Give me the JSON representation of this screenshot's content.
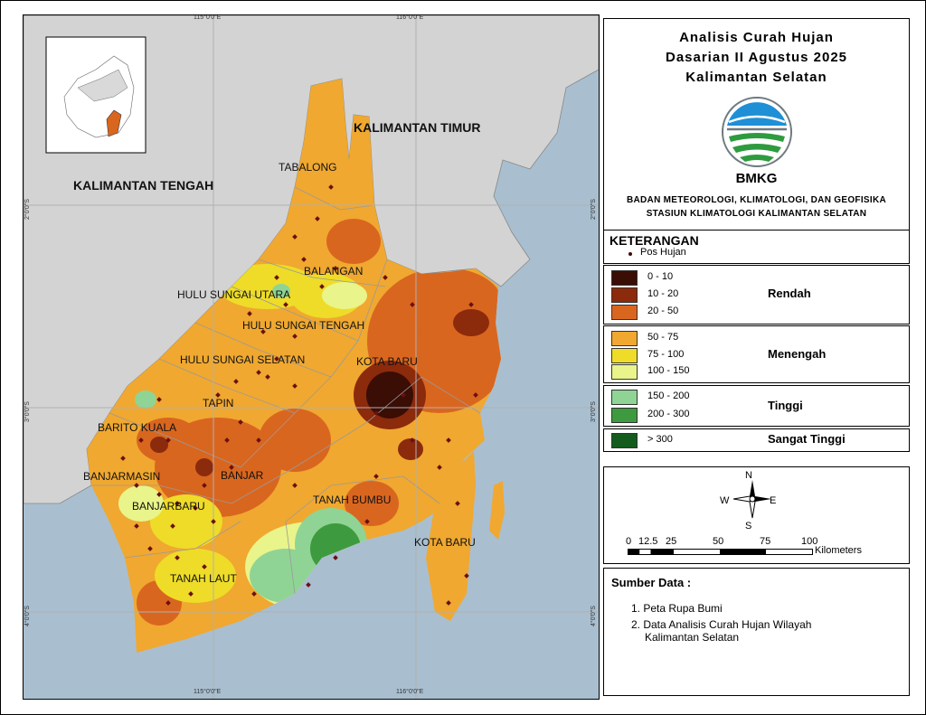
{
  "title": {
    "line1": "Analisis Curah Hujan",
    "line2": "Dasarian II Agustus 2025",
    "line3": "Kalimantan Selatan"
  },
  "logo": {
    "text": "BMKG",
    "colors": {
      "blue": "#1f8fd6",
      "green": "#2e9b3f",
      "gray": "#6f7a80"
    }
  },
  "organization": {
    "line1": "BADAN METEOROLOGI, KLIMATOLOGI, DAN GEOFISIKA",
    "line2": "STASIUN KLIMATOLOGI KALIMANTAN SELATAN"
  },
  "legend": {
    "title": "KETERANGAN",
    "station_label": "Pos Hujan",
    "groups": [
      {
        "category": "Rendah",
        "classes": [
          {
            "label": "0 - 10",
            "color": "#3a0d05"
          },
          {
            "label": "10 - 20",
            "color": "#8c2a0c"
          },
          {
            "label": "20 - 50",
            "color": "#d9661f"
          }
        ]
      },
      {
        "category": "Menengah",
        "classes": [
          {
            "label": "50 - 75",
            "color": "#f0a830"
          },
          {
            "label": "75 - 100",
            "color": "#eedc28"
          },
          {
            "label": "100 - 150",
            "color": "#e9f48a"
          }
        ]
      },
      {
        "category": "Tinggi",
        "classes": [
          {
            "label": "150 - 200",
            "color": "#8fd494"
          },
          {
            "label": "200 - 300",
            "color": "#3e9a3e"
          }
        ]
      },
      {
        "category": "Sangat Tinggi",
        "classes": [
          {
            "label": "> 300",
            "color": "#135c1d"
          }
        ]
      }
    ]
  },
  "compass": {
    "n": "N",
    "s": "S",
    "e": "E",
    "w": "W"
  },
  "scale_bar": {
    "ticks": [
      "0",
      "12.5",
      "25",
      "50",
      "75",
      "100"
    ],
    "unit": "Kilometers"
  },
  "sources": {
    "heading": "Sumber Data :",
    "items": [
      "1. Peta Rupa Bumi",
      "2. Data Analisis Curah Hujan Wilayah",
      "Kalimantan Selatan"
    ]
  },
  "map": {
    "colors": {
      "sea": "#a9bfd0",
      "land_other": "#d3d3d3",
      "boundary": "#8a8a8a"
    },
    "neighbor_labels": [
      "KALIMANTAN TIMUR",
      "KALIMANTAN TENGAH"
    ],
    "region_labels": [
      "TABALONG",
      "BALANGAN",
      "HULU SUNGAI UTARA",
      "HULU SUNGAI TENGAH",
      "HULU SUNGAI SELATAN",
      "KOTA BARU",
      "TAPIN",
      "BARITO KUALA",
      "BANJARMASIN",
      "BANJAR",
      "BANJARBARU",
      "TANAH BUMBU",
      "KOTA BARU",
      "TANAH LAUT"
    ],
    "grid_labels": {
      "top": [
        "115°0'0\"E",
        "116°0'0\"E"
      ],
      "bottom": [
        "115°0'0\"E",
        "116°0'0\"E"
      ],
      "left": [
        "2°0'0\"S",
        "3°0'0\"S",
        "4°0'0\"S"
      ],
      "right": [
        "2°0'0\"S",
        "3°0'0\"S",
        "4°0'0\"S"
      ]
    }
  }
}
